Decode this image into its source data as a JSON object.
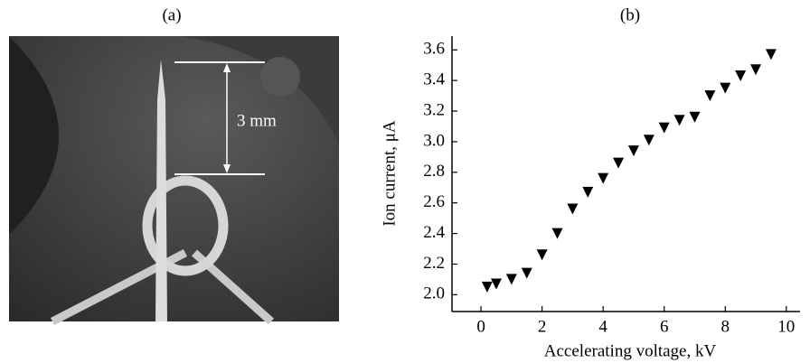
{
  "photo": {
    "label": "(a)",
    "scale_label": "3 mm"
  },
  "chart_data": {
    "type": "scatter",
    "title": "(b)",
    "x_label": "Accelerating voltage, kV",
    "y_label": "Ion current, μA",
    "x": [
      0.2,
      0.5,
      1.0,
      1.5,
      2.0,
      2.5,
      3.0,
      3.5,
      4.0,
      4.5,
      5.0,
      5.5,
      6.0,
      6.5,
      7.0,
      7.5,
      8.0,
      8.5,
      9.0,
      9.5
    ],
    "values": [
      2.05,
      2.07,
      2.1,
      2.14,
      2.26,
      2.4,
      2.56,
      2.67,
      2.76,
      2.86,
      2.94,
      3.01,
      3.09,
      3.14,
      3.16,
      3.3,
      3.35,
      3.43,
      3.47,
      3.57
    ],
    "color": "#000000",
    "marker": "triangle-down",
    "xlim": [
      -0.95,
      10.45
    ],
    "ylim": [
      1.89,
      3.69
    ],
    "xticks": [
      0,
      2,
      4,
      6,
      8,
      10
    ],
    "yticks": [
      {
        "value": 2.0,
        "label": "2.0"
      },
      2.2,
      2.4,
      2.6,
      2.8,
      {
        "value": 3.0,
        "label": "3.0"
      },
      3.2,
      3.4,
      3.6
    ]
  }
}
